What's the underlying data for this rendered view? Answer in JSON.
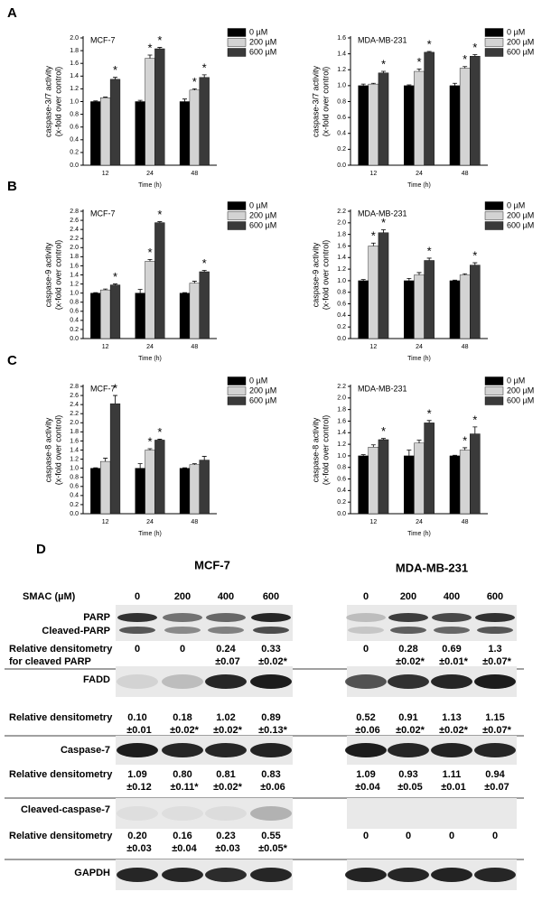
{
  "panel_labels": [
    "A",
    "B",
    "C",
    "D"
  ],
  "chart_data": [
    {
      "type": "bar",
      "title": "MCF-7",
      "ylabel": "caspase-3/7 activity",
      "ylabel_sub": "(x-fold over control)",
      "xlabel": "Time (h)",
      "categories": [
        "12",
        "24",
        "48"
      ],
      "ylim": [
        0,
        2.0
      ],
      "yticks": [
        {
          "value": 0,
          "label": "0.0"
        },
        0.2,
        0.4,
        0.6,
        0.8,
        {
          "value": 1.0,
          "label": "1.0"
        },
        1.2,
        1.4,
        1.6,
        1.8,
        {
          "value": 2.0,
          "label": "2.0"
        }
      ],
      "series": [
        {
          "name": "0 µM",
          "color": "#000000",
          "values": [
            1.0,
            1.0,
            1.0
          ],
          "errors": [
            0.01,
            0.02,
            0.04
          ]
        },
        {
          "name": "200 µM",
          "color": "#d3d3d3",
          "values": [
            1.06,
            1.68,
            1.18
          ],
          "errors": [
            0.01,
            0.05,
            0.02
          ],
          "annotations": [
            null,
            "*",
            "*"
          ]
        },
        {
          "name": "600 µM",
          "color": "#3a3a3a",
          "values": [
            1.35,
            1.83,
            1.38
          ],
          "errors": [
            0.03,
            0.02,
            0.04
          ],
          "annotations": [
            "*",
            "*",
            "*"
          ]
        }
      ]
    },
    {
      "type": "bar",
      "title": "MDA-MB-231",
      "ylabel": "caspase-3/7 activity",
      "ylabel_sub": "(x-fold over control)",
      "xlabel": "Time (h)",
      "categories": [
        "12",
        "24",
        "48"
      ],
      "ylim": [
        0,
        1.6
      ],
      "yticks": [
        {
          "value": 0,
          "label": "0.0"
        },
        0.2,
        0.4,
        0.6,
        0.8,
        {
          "value": 1.0,
          "label": "1.0"
        },
        1.2,
        1.4,
        1.6
      ],
      "series": [
        {
          "name": "0 µM",
          "color": "#000000",
          "values": [
            1.0,
            1.0,
            1.0
          ],
          "errors": [
            0.02,
            0.01,
            0.03
          ]
        },
        {
          "name": "200 µM",
          "color": "#d3d3d3",
          "values": [
            1.02,
            1.18,
            1.22
          ],
          "errors": [
            0.01,
            0.03,
            0.02
          ],
          "annotations": [
            null,
            "*",
            "*"
          ]
        },
        {
          "name": "600 µM",
          "color": "#3a3a3a",
          "values": [
            1.16,
            1.42,
            1.37
          ],
          "errors": [
            0.02,
            0.01,
            0.02
          ],
          "annotations": [
            "*",
            "*",
            "*"
          ]
        }
      ]
    },
    {
      "type": "bar",
      "title": "MCF-7",
      "ylabel": "caspase-9 activity",
      "ylabel_sub": "(x-fold over control)",
      "xlabel": "Time (h)",
      "categories": [
        "12",
        "24",
        "48"
      ],
      "ylim": [
        0,
        2.8
      ],
      "yticks": [
        {
          "value": 0,
          "label": "0.0"
        },
        0.2,
        0.4,
        0.6,
        0.8,
        {
          "value": 1.0,
          "label": "1.0"
        },
        1.2,
        1.4,
        1.6,
        1.8,
        {
          "value": 2.0,
          "label": "2.0"
        },
        2.2,
        2.4,
        2.6,
        2.8
      ],
      "series": [
        {
          "name": "0 µM",
          "color": "#000000",
          "values": [
            1.0,
            1.0,
            1.0
          ],
          "errors": [
            0.01,
            0.08,
            0.01
          ]
        },
        {
          "name": "200 µM",
          "color": "#d3d3d3",
          "values": [
            1.07,
            1.7,
            1.22
          ],
          "errors": [
            0.02,
            0.04,
            0.04
          ],
          "annotations": [
            null,
            "*",
            null
          ]
        },
        {
          "name": "600 µM",
          "color": "#3a3a3a",
          "values": [
            1.18,
            2.55,
            1.47
          ],
          "errors": [
            0.02,
            0.02,
            0.03
          ],
          "annotations": [
            "*",
            "*",
            "*"
          ]
        }
      ]
    },
    {
      "type": "bar",
      "title": "MDA-MB-231",
      "ylabel": "caspase-9 activity",
      "ylabel_sub": "(x-fold over control)",
      "xlabel": "Time (h)",
      "categories": [
        "12",
        "24",
        "48"
      ],
      "ylim": [
        0,
        2.2
      ],
      "yticks": [
        {
          "value": 0,
          "label": "0.0"
        },
        0.2,
        0.4,
        0.6,
        0.8,
        {
          "value": 1.0,
          "label": "1.0"
        },
        1.2,
        1.4,
        1.6,
        1.8,
        {
          "value": 2.0,
          "label": "2.0"
        },
        2.2
      ],
      "series": [
        {
          "name": "0 µM",
          "color": "#000000",
          "values": [
            1.0,
            1.0,
            1.0
          ],
          "errors": [
            0.02,
            0.04,
            0.01
          ]
        },
        {
          "name": "200 µM",
          "color": "#d3d3d3",
          "values": [
            1.6,
            1.1,
            1.1
          ],
          "errors": [
            0.05,
            0.04,
            0.02
          ],
          "annotations": [
            "*",
            null,
            null
          ]
        },
        {
          "name": "600 µM",
          "color": "#3a3a3a",
          "values": [
            1.83,
            1.35,
            1.27
          ],
          "errors": [
            0.05,
            0.04,
            0.04
          ],
          "annotations": [
            "*",
            "*",
            "*"
          ]
        }
      ]
    },
    {
      "type": "bar",
      "title": "MCF-7",
      "ylabel": "caspase-8 activity",
      "ylabel_sub": "(x-fold over control)",
      "xlabel": "Time (h)",
      "categories": [
        "12",
        "24",
        "48"
      ],
      "ylim": [
        0,
        2.8
      ],
      "yticks": [
        {
          "value": 0,
          "label": "0.0"
        },
        0.2,
        0.4,
        0.6,
        0.8,
        {
          "value": 1.0,
          "label": "1.0"
        },
        1.2,
        1.4,
        1.6,
        1.8,
        {
          "value": 2.0,
          "label": "2.0"
        },
        2.2,
        2.4,
        2.6,
        2.8
      ],
      "series": [
        {
          "name": "0 µM",
          "color": "#000000",
          "values": [
            1.0,
            1.0,
            1.0
          ],
          "errors": [
            0.01,
            0.1,
            0.01
          ]
        },
        {
          "name": "200 µM",
          "color": "#d3d3d3",
          "values": [
            1.15,
            1.4,
            1.08
          ],
          "errors": [
            0.07,
            0.03,
            0.02
          ],
          "annotations": [
            null,
            "*",
            null
          ]
        },
        {
          "name": "600 µM",
          "color": "#3a3a3a",
          "values": [
            2.42,
            1.62,
            1.18
          ],
          "errors": [
            0.18,
            0.02,
            0.08
          ],
          "annotations": [
            "*",
            "*",
            null
          ]
        }
      ]
    },
    {
      "type": "bar",
      "title": "MDA-MB-231",
      "ylabel": "caspase-8 activity",
      "ylabel_sub": "(x-fold over control)",
      "xlabel": "Time (h)",
      "categories": [
        "12",
        "24",
        "48"
      ],
      "ylim": [
        0,
        2.2
      ],
      "yticks": [
        {
          "value": 0,
          "label": "0.0"
        },
        0.2,
        0.4,
        0.6,
        0.8,
        {
          "value": 1.0,
          "label": "1.0"
        },
        1.2,
        1.4,
        1.6,
        1.8,
        {
          "value": 2.0,
          "label": "2.0"
        },
        2.2
      ],
      "series": [
        {
          "name": "0 µM",
          "color": "#000000",
          "values": [
            1.0,
            1.0,
            1.0
          ],
          "errors": [
            0.02,
            0.1,
            0.01
          ]
        },
        {
          "name": "200 µM",
          "color": "#d3d3d3",
          "values": [
            1.15,
            1.22,
            1.1
          ],
          "errors": [
            0.04,
            0.05,
            0.04
          ],
          "annotations": [
            null,
            null,
            "*"
          ]
        },
        {
          "name": "600 µM",
          "color": "#3a3a3a",
          "values": [
            1.28,
            1.57,
            1.38
          ],
          "errors": [
            0.02,
            0.04,
            0.12
          ],
          "annotations": [
            "*",
            "*",
            "*"
          ]
        }
      ]
    }
  ],
  "blot": {
    "title_left": "MCF-7",
    "title_right": "MDA-MB-231",
    "conc_label": "SMAC (µM)",
    "concentrations": [
      "0",
      "200",
      "400",
      "600"
    ],
    "rows": [
      {
        "labels": [
          "PARP",
          "Cleaved-PARP"
        ],
        "densitometry_label": [
          "Relative densitometry",
          "for  cleaved PARP"
        ],
        "mcf7": [
          {
            "mean": "0"
          },
          {
            "mean": "0"
          },
          {
            "mean": "0.24",
            "sd": "±0.07"
          },
          {
            "mean": "0.33",
            "sd": "±0.02*"
          }
        ],
        "mdamb231": [
          {
            "mean": "0"
          },
          {
            "mean": "0.28",
            "sd": "±0.02*"
          },
          {
            "mean": "0.69",
            "sd": "±0.01*"
          },
          {
            "mean": "1.3",
            "sd": "±0.07*"
          }
        ]
      },
      {
        "labels": [
          "FADD"
        ],
        "densitometry_label": [
          "Relative densitometry"
        ],
        "mcf7": [
          {
            "mean": "0.10",
            "sd": "±0.01"
          },
          {
            "mean": "0.18",
            "sd": "±0.02*"
          },
          {
            "mean": "1.02",
            "sd": "±0.02*"
          },
          {
            "mean": "0.89",
            "sd": "±0.13*"
          }
        ],
        "mdamb231": [
          {
            "mean": "0.52",
            "sd": "±0.06"
          },
          {
            "mean": "0.91",
            "sd": "±0.02*"
          },
          {
            "mean": "1.13",
            "sd": "±0.02*"
          },
          {
            "mean": "1.15",
            "sd": "±0.07*"
          }
        ]
      },
      {
        "labels": [
          "Caspase-7"
        ],
        "densitometry_label": [
          "Relative densitometry"
        ],
        "mcf7": [
          {
            "mean": "1.09",
            "sd": "±0.12"
          },
          {
            "mean": "0.80",
            "sd": "±0.11*"
          },
          {
            "mean": "0.81",
            "sd": "±0.02*"
          },
          {
            "mean": "0.83",
            "sd": "±0.06"
          }
        ],
        "mdamb231": [
          {
            "mean": "1.09",
            "sd": "±0.04"
          },
          {
            "mean": "0.93",
            "sd": "±0.05"
          },
          {
            "mean": "1.11",
            "sd": "±0.01"
          },
          {
            "mean": "0.94",
            "sd": "±0.07"
          }
        ]
      },
      {
        "labels": [
          "Cleaved-caspase-7"
        ],
        "densitometry_label": [
          "Relative densitometry"
        ],
        "mcf7": [
          {
            "mean": "0.20",
            "sd": "±0.03"
          },
          {
            "mean": "0.16",
            "sd": "±0.04"
          },
          {
            "mean": "0.23",
            "sd": "±0.03"
          },
          {
            "mean": "0.55",
            "sd": "±0.05*"
          }
        ],
        "mdamb231": [
          {
            "mean": "0"
          },
          {
            "mean": "0"
          },
          {
            "mean": "0"
          },
          {
            "mean": "0"
          }
        ]
      },
      {
        "labels": [
          "GAPDH"
        ]
      }
    ]
  }
}
